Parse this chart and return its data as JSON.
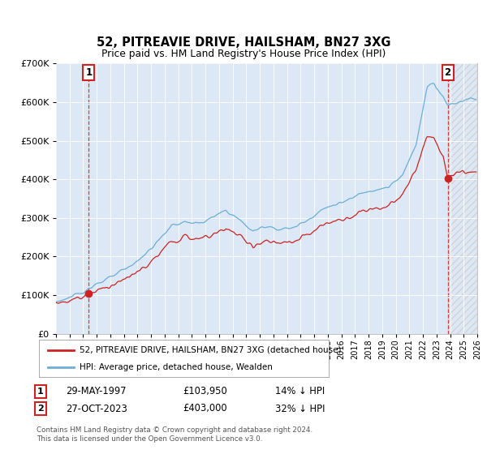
{
  "title": "52, PITREAVIE DRIVE, HAILSHAM, BN27 3XG",
  "subtitle": "Price paid vs. HM Land Registry's House Price Index (HPI)",
  "sale1_date": "29-MAY-1997",
  "sale1_price": 103950,
  "sale1_label": "14% ↓ HPI",
  "sale1_num": "1",
  "sale2_date": "27-OCT-2023",
  "sale2_price": 403000,
  "sale2_label": "32% ↓ HPI",
  "sale2_num": "2",
  "legend_line1": "52, PITREAVIE DRIVE, HAILSHAM, BN27 3XG (detached house)",
  "legend_line2": "HPI: Average price, detached house, Wealden",
  "footnote": "Contains HM Land Registry data © Crown copyright and database right 2024.\nThis data is licensed under the Open Government Licence v3.0.",
  "hpi_color": "#6baed6",
  "price_color": "#cc2222",
  "background_color": "#dce8f5",
  "ylim": [
    0,
    700000
  ],
  "yticks": [
    0,
    100000,
    200000,
    300000,
    400000,
    500000,
    600000,
    700000
  ],
  "start_year": 1995,
  "end_year": 2026,
  "sale1_year": 1997.41,
  "sale2_year": 2023.83
}
